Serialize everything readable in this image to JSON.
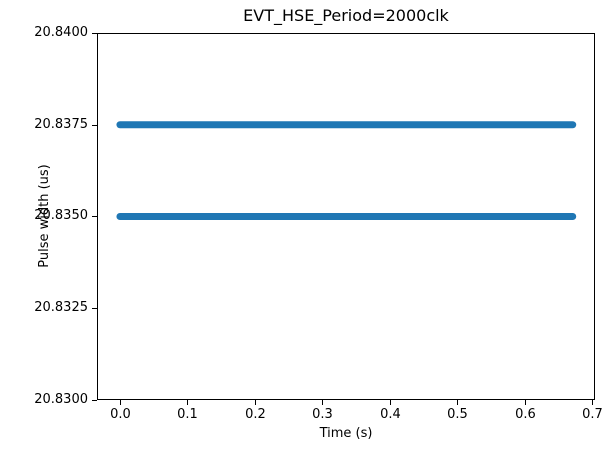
{
  "figure": {
    "background": "#ffffff",
    "axis_color": "#000000"
  },
  "chart_data": {
    "type": "scatter",
    "title": "EVT_HSE_Period=2000clk",
    "xlabel": "Time (s)",
    "ylabel": "Pulse width (us)",
    "xlim": [
      -0.034,
      0.704
    ],
    "ylim": [
      20.83,
      20.84
    ],
    "grid": false,
    "legend": null,
    "point_color": "#1f77b4",
    "marker": "circle",
    "marker_diameter_px": 7,
    "x_ticks": [
      {
        "value": 0.0,
        "label": "0.0"
      },
      {
        "value": 0.1,
        "label": "0.1"
      },
      {
        "value": 0.2,
        "label": "0.2"
      },
      {
        "value": 0.3,
        "label": "0.3"
      },
      {
        "value": 0.4,
        "label": "0.4"
      },
      {
        "value": 0.5,
        "label": "0.5"
      },
      {
        "value": 0.6,
        "label": "0.6"
      },
      {
        "value": 0.7,
        "label": "0.7"
      }
    ],
    "y_ticks": [
      {
        "value": 20.84,
        "label": "20.8400"
      },
      {
        "value": 20.8375,
        "label": "20.8375"
      },
      {
        "value": 20.835,
        "label": "20.8350"
      },
      {
        "value": 20.8325,
        "label": "20.8325"
      },
      {
        "value": 20.83,
        "label": "20.8300"
      }
    ],
    "series": [
      {
        "name": "pulse_width_band_upper",
        "y": 20.8375,
        "x_start": 0.0,
        "x_end": 0.671,
        "style": "dense horizontal band of overlapping scatter points"
      },
      {
        "name": "pulse_width_band_lower",
        "y": 20.835,
        "x_start": 0.0,
        "x_end": 0.671,
        "style": "dense horizontal band of overlapping scatter points"
      }
    ]
  }
}
